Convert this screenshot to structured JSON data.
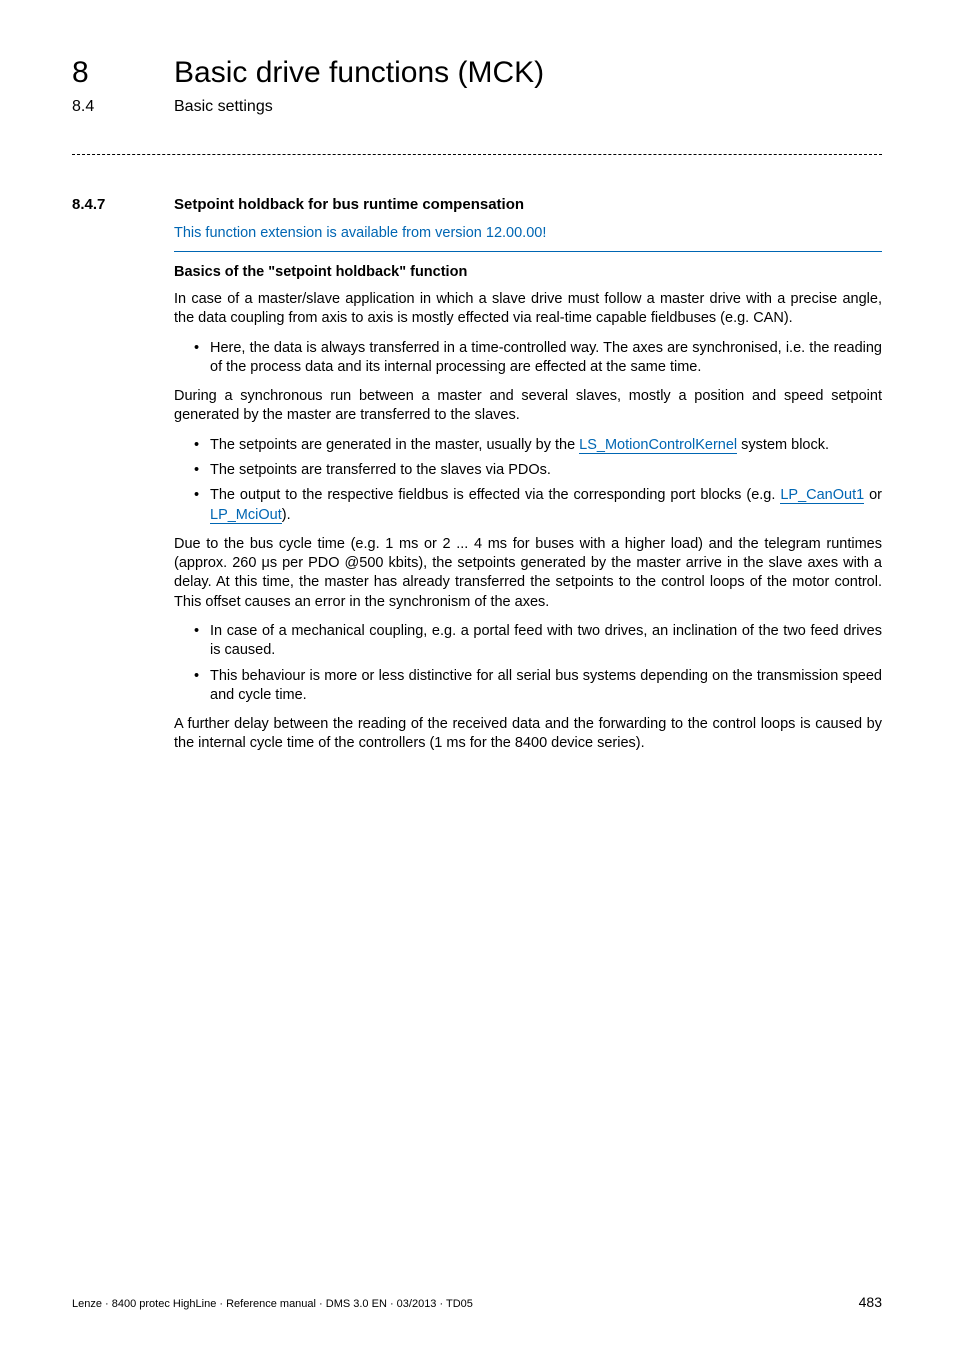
{
  "chapter": {
    "num": "8",
    "title": "Basic drive functions (MCK)"
  },
  "section": {
    "num": "8.4",
    "title": "Basic settings"
  },
  "subsection": {
    "num": "8.4.7",
    "title": "Setpoint holdback for bus runtime compensation"
  },
  "version_note": "This function extension is available from version 12.00.00!",
  "sub_heading": "Basics of the \"setpoint holdback\" function",
  "p1": "In case of a master/slave application in which a slave drive must follow a master drive with a precise angle, the data coupling from axis to axis is mostly effected via real-time capable fieldbuses (e.g. CAN).",
  "b1_1": "Here, the data is always transferred in a time-controlled way. The axes are synchronised, i.e. the reading of the process data and its internal processing are effected at the same time.",
  "p2": "During a synchronous run between a master and several slaves, mostly a position and speed setpoint generated by the master are transferred to the slaves.",
  "b2_1_pre": "The setpoints are generated in the master, usually by the ",
  "b2_1_link": "LS_MotionControlKernel",
  "b2_1_post": " system block.",
  "b2_2": "The setpoints are transferred to the slaves via PDOs.",
  "b2_3_pre": "The output to the respective fieldbus is effected via the corresponding port blocks (e.g. ",
  "b2_3_link1": "LP_CanOut1",
  "b2_3_mid": " or ",
  "b2_3_link2": "LP_MciOut",
  "b2_3_post": ").",
  "p3": "Due to the bus cycle time (e.g. 1 ms or 2 ... 4 ms for buses with a higher load) and the telegram runtimes (approx. 260 μs per PDO @500 kbits), the setpoints generated by the master arrive in the slave axes with a delay. At this time, the master has already transferred the setpoints to the control loops of the motor control. This offset causes an error in the synchronism of the axes.",
  "b3_1": "In case of a mechanical coupling, e.g. a portal feed with two drives, an inclination of the two feed drives is caused.",
  "b3_2": "This behaviour is more or less distinctive for all serial bus systems depending on the transmission speed and cycle time.",
  "p4": "A further delay between the reading of the received data and the forwarding to the control loops is caused by the internal cycle time of the controllers (1 ms for the 8400 device series).",
  "footer": {
    "left": "Lenze · 8400 protec HighLine · Reference manual · DMS 3.0 EN · 03/2013 · TD05",
    "page": "483"
  },
  "colors": {
    "link_blue": "#0066b3",
    "text": "#000000",
    "bg": "#ffffff"
  }
}
